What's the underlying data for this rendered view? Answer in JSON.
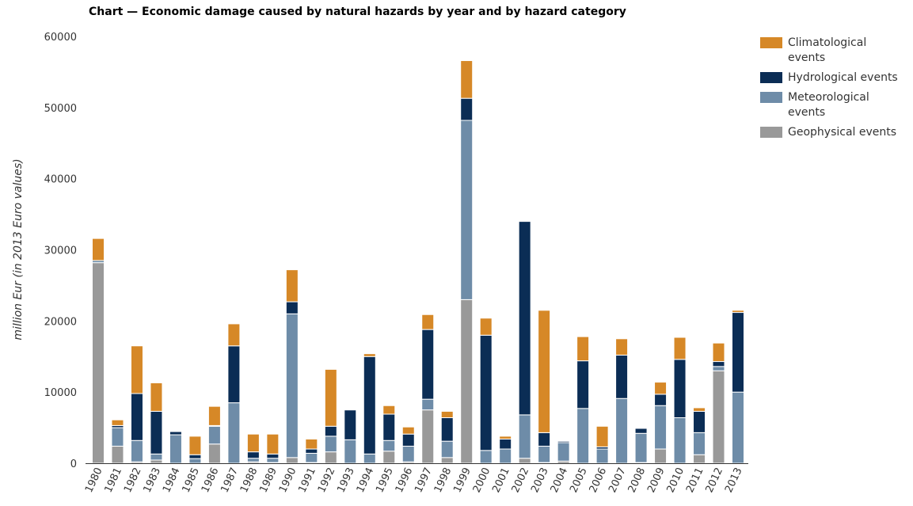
{
  "chart_data": {
    "type": "bar",
    "stacked": true,
    "title": "Chart — Economic damage caused by natural hazards by year and by hazard category",
    "xlabel": "",
    "ylabel": "million Eur (in 2013 Euro values)",
    "ylim": [
      0,
      60000
    ],
    "yticks": [
      0,
      10000,
      20000,
      30000,
      40000,
      50000,
      60000
    ],
    "grid": false,
    "legend_position": "right",
    "categories": [
      "1980",
      "1981",
      "1982",
      "1983",
      "1984",
      "1985",
      "1986",
      "1987",
      "1988",
      "1989",
      "1990",
      "1991",
      "1992",
      "1993",
      "1994",
      "1995",
      "1996",
      "1997",
      "1998",
      "1999",
      "2000",
      "2001",
      "2002",
      "2003",
      "2004",
      "2005",
      "2006",
      "2007",
      "2008",
      "2009",
      "2010",
      "2011",
      "2012",
      "2013"
    ],
    "series": [
      {
        "name": "Geophysical events",
        "color": "#999999",
        "values": [
          28200,
          2400,
          200,
          450,
          0,
          0,
          2700,
          0,
          200,
          100,
          800,
          100,
          1600,
          0,
          0,
          1700,
          200,
          7500,
          800,
          23000,
          0,
          0,
          700,
          100,
          300,
          0,
          0,
          0,
          100,
          2000,
          0,
          1200,
          13000,
          0
        ]
      },
      {
        "name": "Meteorological events",
        "color": "#6e8ca8",
        "values": [
          300,
          2600,
          3000,
          850,
          4000,
          650,
          2500,
          8500,
          500,
          600,
          20200,
          1300,
          2200,
          3300,
          1300,
          1500,
          2200,
          1500,
          2300,
          25200,
          1800,
          2000,
          6100,
          2300,
          2600,
          7700,
          2000,
          9100,
          4100,
          6100,
          6400,
          3100,
          600,
          10000
        ]
      },
      {
        "name": "Hydrological events",
        "color": "#0b2d55",
        "values": [
          0,
          300,
          6600,
          6000,
          450,
          550,
          100,
          8000,
          900,
          600,
          1700,
          600,
          1400,
          4200,
          13700,
          3700,
          1700,
          9800,
          3300,
          3100,
          16200,
          1400,
          27200,
          1900,
          200,
          6700,
          300,
          6100,
          700,
          1600,
          8200,
          3000,
          700,
          11200
        ]
      },
      {
        "name": "Climatological events",
        "color": "#d68827",
        "values": [
          3100,
          800,
          6700,
          4000,
          0,
          2600,
          2700,
          3100,
          2500,
          2800,
          4500,
          1400,
          8000,
          100,
          400,
          1200,
          1000,
          2100,
          900,
          5300,
          2400,
          400,
          100,
          17200,
          100,
          3400,
          2900,
          2300,
          0,
          1700,
          3100,
          500,
          2600,
          300
        ]
      }
    ],
    "legend_order": [
      "Climatological events",
      "Hydrological events",
      "Meteorological events",
      "Geophysical events"
    ]
  }
}
